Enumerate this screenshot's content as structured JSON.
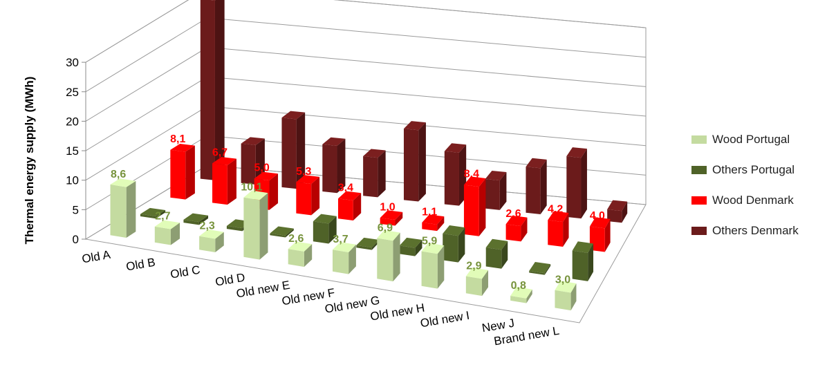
{
  "chart_data": {
    "type": "bar",
    "ylabel": "Thermal energy supply (MWh)",
    "ylim": [
      0,
      30
    ],
    "yticks": [
      "0",
      "5",
      "10",
      "15",
      "20",
      "25",
      "30"
    ],
    "categories": [
      "Old A",
      "Old B",
      "Old C",
      "Old D",
      "Old new E",
      "Old new F",
      "Old new G",
      "Old new H",
      "Old new I",
      "New J",
      "Brand new L"
    ],
    "legend_position": "right",
    "grid": true,
    "series": [
      {
        "name": "Wood Portugal",
        "color": "#c4dba0",
        "values": [
          8.6,
          2.7,
          2.3,
          10.1,
          2.6,
          3.7,
          6.9,
          5.9,
          2.9,
          0.8,
          3.0
        ],
        "labels": [
          "8,6",
          "2,7",
          "2,3",
          "10,1",
          "2,6",
          "3,7",
          "6,9",
          "5,9",
          "2,9",
          "0,8",
          "3,0"
        ],
        "label_color": "#77933c"
      },
      {
        "name": "Others Portugal",
        "color": "#4f6228",
        "values": [
          0.4,
          0.5,
          0.5,
          0.3,
          3.4,
          0.4,
          1.4,
          4.5,
          3.2,
          0.3,
          4.8
        ]
      },
      {
        "name": "Wood Denmark",
        "color": "#ff0000",
        "values": [
          8.1,
          6.7,
          5.0,
          5.3,
          3.4,
          1.0,
          1.1,
          8.4,
          2.6,
          4.2,
          4.0
        ],
        "labels": [
          "8,1",
          "6,7",
          "5,0",
          "5,3",
          "3,4",
          "1,0",
          "1,1",
          "8,4",
          "2,6",
          "4,2",
          "4,0"
        ],
        "label_color": "#ff0000"
      },
      {
        "name": "Others Denmark",
        "color": "#6b1b1b",
        "values": [
          30.5,
          6.7,
          11.8,
          8.0,
          6.7,
          12.1,
          9.0,
          5.0,
          7.8,
          10.3,
          2.0
        ]
      }
    ]
  }
}
